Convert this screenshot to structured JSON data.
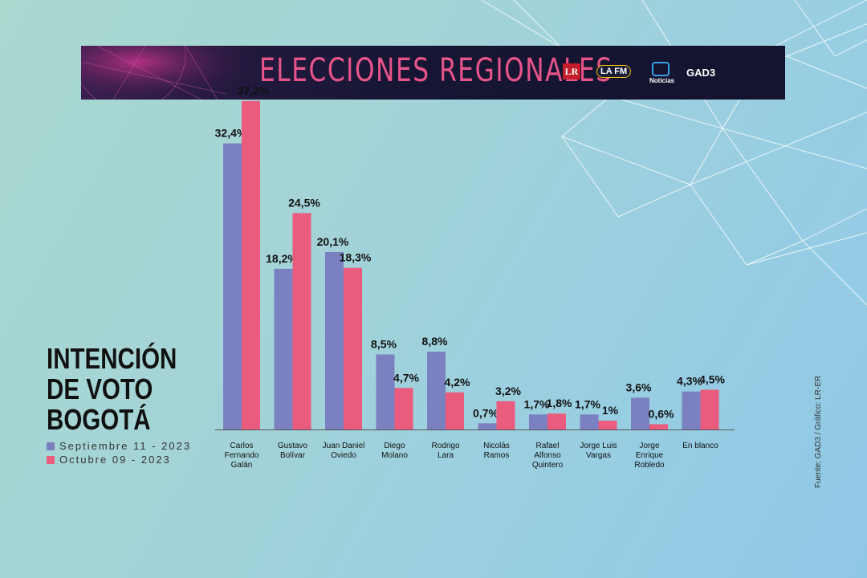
{
  "banner": {
    "title": "ELECCIONES REGIONALES",
    "logos": [
      "LR",
      "LA FM",
      "Noticias",
      "GAD3"
    ]
  },
  "title_lines": [
    "INTENCIÓN",
    "DE VOTO",
    "BOGOTÁ"
  ],
  "source": "Fuente: GAD3 / Gráfico: LR-ER",
  "colors": {
    "series1": "#7b80c0",
    "series2": "#ea5c7d",
    "banner_title": "#e8548a"
  },
  "chart_data": {
    "type": "bar",
    "categories": [
      [
        "Carlos",
        "Fernando",
        "Galán"
      ],
      [
        "Gustavo",
        "Bolívar"
      ],
      [
        "Juan Daniel",
        "Oviedo"
      ],
      [
        "Diego",
        "Molano"
      ],
      [
        "Rodrigo",
        "Lara"
      ],
      [
        "Nicolás",
        "Ramos"
      ],
      [
        "Rafael",
        "Alfonso",
        "Quintero"
      ],
      [
        "Jorge Luis",
        "Vargas"
      ],
      [
        "Jorge",
        "Enrique",
        "Robledo"
      ],
      [
        "En blanco"
      ]
    ],
    "series": [
      {
        "name": "Septiembre 11 - 2023",
        "values": [
          32.4,
          18.2,
          20.1,
          8.5,
          8.8,
          0.7,
          1.7,
          1.7,
          3.6,
          4.3
        ],
        "labels": [
          "32,4%",
          "18,2%",
          "20,1%",
          "8,5%",
          "8,8%",
          "0,7%",
          "1,7%",
          "1,7%",
          "3,6%",
          "4,3%"
        ]
      },
      {
        "name": "Octubre 09 - 2023",
        "values": [
          37.2,
          24.5,
          18.3,
          4.7,
          4.2,
          3.2,
          1.8,
          1.0,
          0.6,
          4.5
        ],
        "labels": [
          "37,2%",
          "24,5%",
          "18,3%",
          "4,7%",
          "4,2%",
          "3,2%",
          "1,8%",
          "1%",
          "0,6%",
          "4,5%"
        ]
      }
    ],
    "ylim": [
      0,
      40
    ]
  }
}
